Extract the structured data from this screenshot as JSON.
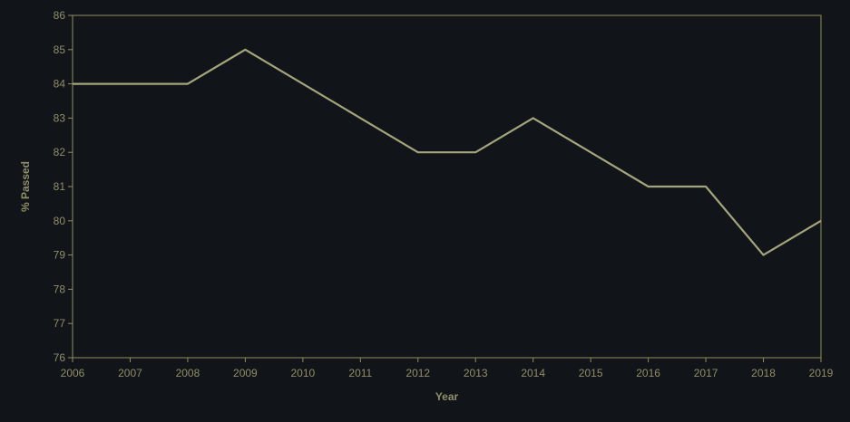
{
  "chart_data": {
    "type": "line",
    "xlabel": "Year",
    "ylabel": "% Passed",
    "ylim": [
      76,
      86
    ],
    "xlim": [
      2006,
      2019
    ],
    "x_ticks": [
      "2006",
      "2007",
      "2008",
      "2009",
      "2010",
      "2011",
      "2012",
      "2013",
      "2014",
      "2015",
      "2016",
      "2017",
      "2018",
      "2019"
    ],
    "y_ticks": [
      "76",
      "77",
      "78",
      "79",
      "80",
      "81",
      "82",
      "83",
      "84",
      "85",
      "86"
    ],
    "grid": false,
    "series": [
      {
        "x": [
          2006,
          2007,
          2008,
          2009,
          2010,
          2011,
          2012,
          2013,
          2014,
          2015,
          2016,
          2017,
          2018,
          2019
        ],
        "values": [
          84,
          84,
          84,
          85,
          84,
          83,
          82,
          82,
          83,
          82,
          81,
          81,
          79,
          80
        ]
      }
    ]
  },
  "colors": {
    "background": "#111418",
    "axis": "#8f8f60",
    "text": "#8f8f6a",
    "line": "#a3a67c"
  }
}
